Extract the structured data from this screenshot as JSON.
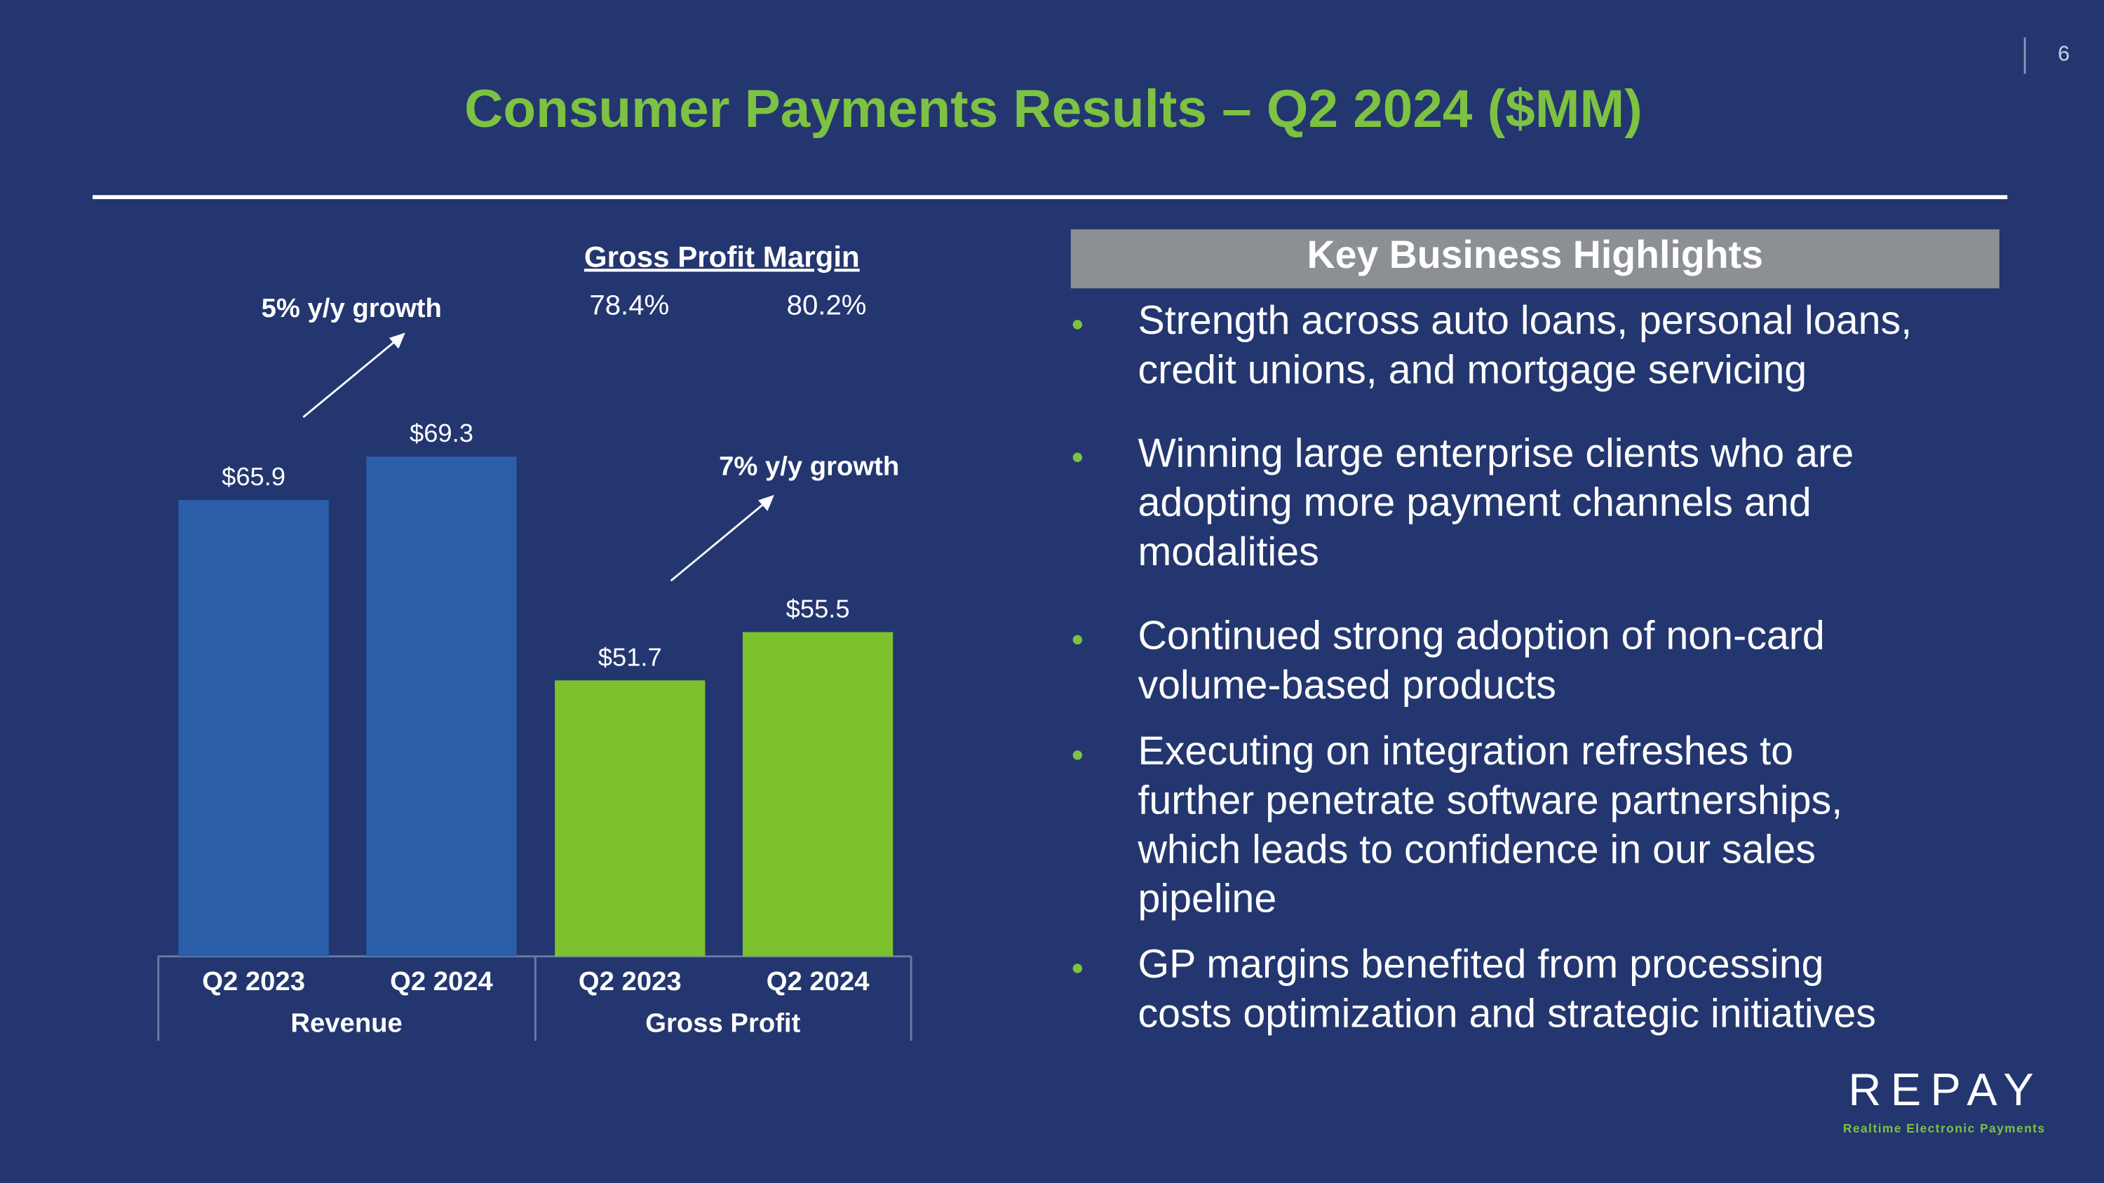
{
  "chart_data": {
    "type": "bar",
    "title": "Consumer Payments Results – Q2 2024 ($MM)",
    "categories": [
      "Q2 2023",
      "Q2 2024"
    ],
    "series": [
      {
        "name": "Revenue",
        "color": "#2a5ea9",
        "values": [
          65.9,
          69.3
        ],
        "value_labels": [
          "$65.9",
          "$69.3"
        ]
      },
      {
        "name": "Gross Profit",
        "color": "#7dc22e",
        "values": [
          51.7,
          55.5
        ],
        "value_labels": [
          "$51.7",
          "$55.5"
        ]
      }
    ],
    "ylim": [
      30,
      80
    ],
    "annotations": [
      "5% y/y growth",
      "7% y/y growth"
    ],
    "margin_title": "Gross Profit Margin",
    "margins": [
      "78.4%",
      "80.2%"
    ]
  },
  "page_number": "6",
  "highlights": {
    "title": "Key Business Highlights",
    "bullets": [
      [
        "Strength across auto loans, personal loans,",
        "credit unions, and mortgage servicing"
      ],
      [
        "Winning large enterprise clients who are",
        "adopting more payment channels and",
        "modalities"
      ],
      [
        "Continued strong adoption of non-card",
        "volume-based products"
      ],
      [
        "Executing on integration refreshes to",
        "further penetrate software partnerships,",
        "which leads to confidence in our sales",
        "pipeline"
      ],
      [
        "GP margins benefited from processing",
        "costs optimization and strategic initiatives"
      ]
    ]
  },
  "logo": {
    "name": "REPAY",
    "tagline": "Realtime Electronic Payments"
  }
}
